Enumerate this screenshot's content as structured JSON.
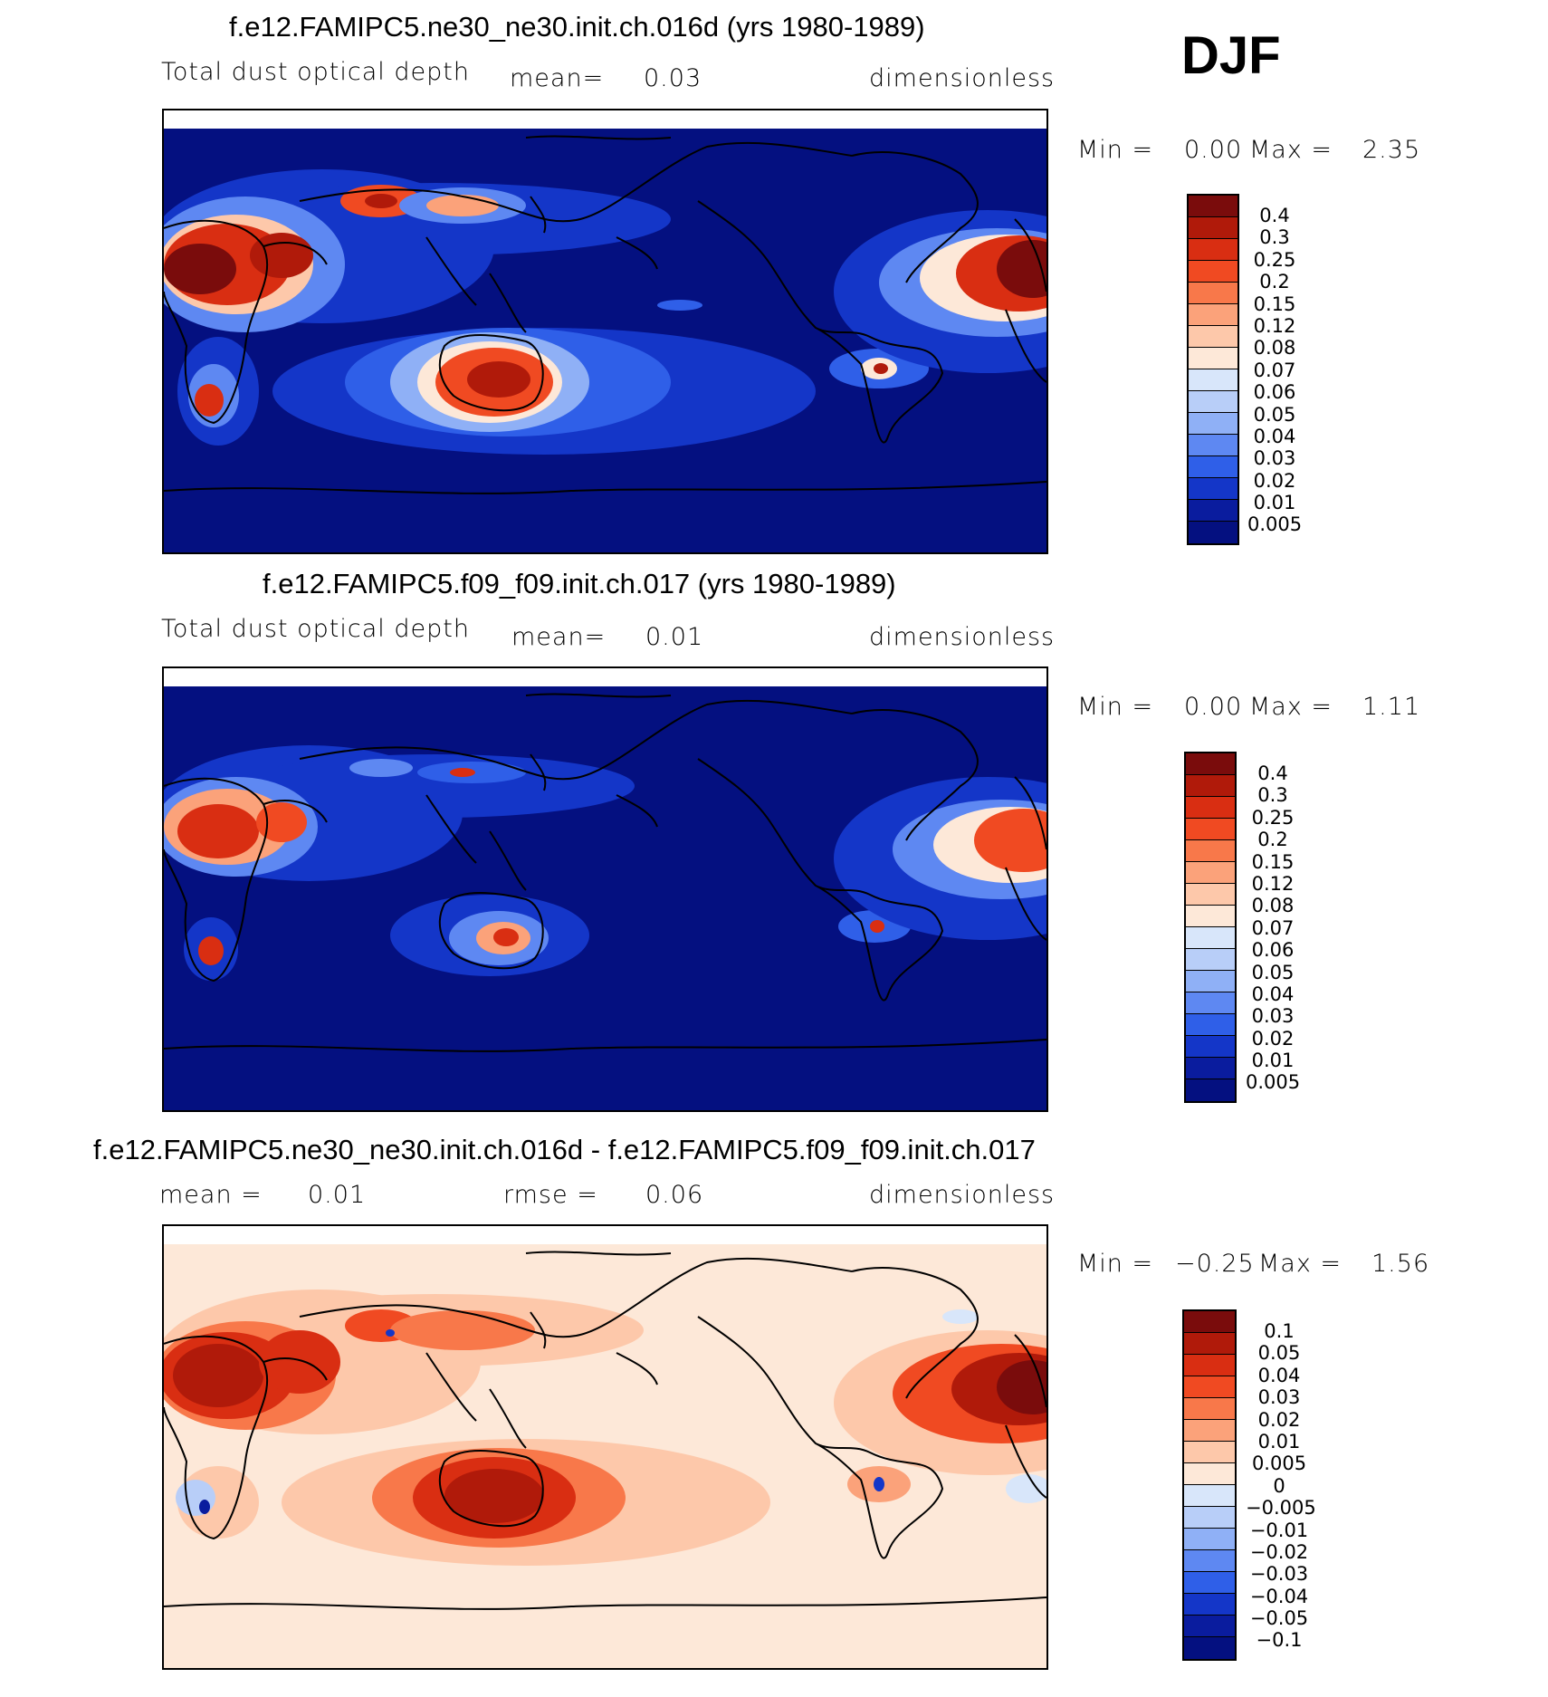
{
  "season": "DJF",
  "panels": [
    {
      "title": "f.e12.FAMIPC5.ne30_ne30.init.ch.016d (yrs 1980-1989)",
      "variable": "Total dust optical depth",
      "mean_label": "mean=",
      "mean_value": "0.03",
      "units": "dimensionless",
      "min_label": "Min =",
      "min_value": "0.00",
      "max_label": "Max =",
      "max_value": "2.35",
      "colorbar_labels": [
        "0.4",
        "0.3",
        "0.25",
        "0.2",
        "0.15",
        "0.12",
        "0.08",
        "0.07",
        "0.06",
        "0.05",
        "0.04",
        "0.03",
        "0.02",
        "0.01",
        "0.005"
      ],
      "colors": [
        "#7a0c0c",
        "#b01a0a",
        "#d92e12",
        "#f04a22",
        "#f8784a",
        "#fba27a",
        "#fdc8aa",
        "#fde8d8",
        "#d8e6fa",
        "#b8cef8",
        "#8fb0f6",
        "#5e88f2",
        "#2f5fe8",
        "#1436c8",
        "#0a1c9e",
        "#041080"
      ]
    },
    {
      "title": "f.e12.FAMIPC5.f09_f09.init.ch.017 (yrs 1980-1989)",
      "variable": "Total dust optical depth",
      "mean_label": "mean=",
      "mean_value": "0.01",
      "units": "dimensionless",
      "min_label": "Min =",
      "min_value": "0.00",
      "max_label": "Max =",
      "max_value": "1.11",
      "colorbar_labels": [
        "0.4",
        "0.3",
        "0.25",
        "0.2",
        "0.15",
        "0.12",
        "0.08",
        "0.07",
        "0.06",
        "0.05",
        "0.04",
        "0.03",
        "0.02",
        "0.01",
        "0.005"
      ],
      "colors": [
        "#7a0c0c",
        "#b01a0a",
        "#d92e12",
        "#f04a22",
        "#f8784a",
        "#fba27a",
        "#fdc8aa",
        "#fde8d8",
        "#d8e6fa",
        "#b8cef8",
        "#8fb0f6",
        "#5e88f2",
        "#2f5fe8",
        "#1436c8",
        "#0a1c9e",
        "#041080"
      ]
    },
    {
      "title": "f.e12.FAMIPC5.ne30_ne30.init.ch.016d - f.e12.FAMIPC5.f09_f09.init.ch.017",
      "mean_label": "mean =",
      "mean_value": "0.01",
      "rmse_label": "rmse =",
      "rmse_value": "0.06",
      "units": "dimensionless",
      "min_label": "Min =",
      "min_value": "−0.25",
      "max_label": "Max =",
      "max_value": "1.56",
      "colorbar_labels": [
        "0.1",
        "0.05",
        "0.04",
        "0.03",
        "0.02",
        "0.01",
        "0.005",
        "0",
        "−0.005",
        "−0.01",
        "−0.02",
        "−0.03",
        "−0.04",
        "−0.05",
        "−0.1"
      ],
      "colors": [
        "#7a0c0c",
        "#b01a0a",
        "#d92e12",
        "#f04a22",
        "#f8784a",
        "#fba27a",
        "#fdc8aa",
        "#fde8d8",
        "#d8e6fa",
        "#b8cef8",
        "#8fb0f6",
        "#5e88f2",
        "#2f5fe8",
        "#1436c8",
        "#0a1c9e",
        "#041080"
      ]
    }
  ]
}
